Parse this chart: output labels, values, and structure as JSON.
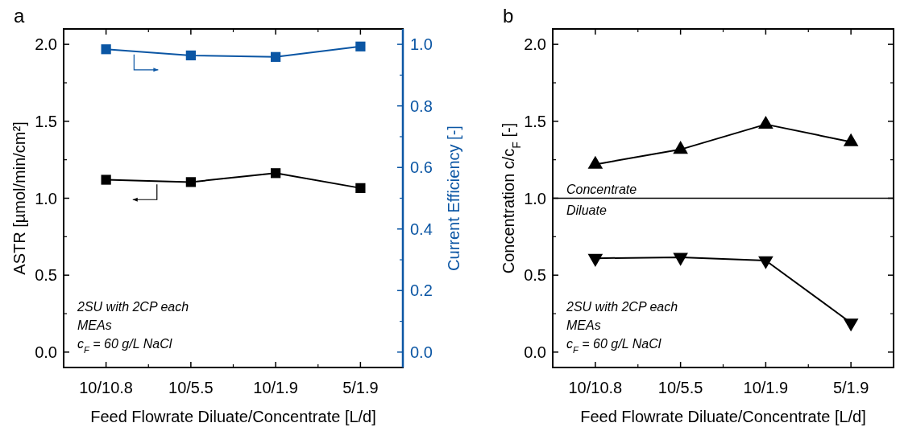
{
  "chart_data": [
    {
      "type": "line",
      "title": "a",
      "xlabel": "Feed Flowrate Diluate/Concentrate [L/d]",
      "ylabel": "ASTR [µmol/min/cm²]",
      "y2label": "Current Efficiency [-]",
      "categories": [
        "10/10.8",
        "10/5.5",
        "10/1.9",
        "5/1.9"
      ],
      "ylim": [
        -0.1,
        2.1
      ],
      "yticks": [
        {
          "value": 0,
          "label": "0.0"
        },
        {
          "value": 0.5,
          "label": "0.5"
        },
        {
          "value": 1,
          "label": "1.0"
        },
        {
          "value": 1.5,
          "label": "1.5"
        },
        {
          "value": 2,
          "label": "2.0"
        }
      ],
      "y2lim": [
        -0.05,
        1.05
      ],
      "y2ticks": [
        {
          "value": 0,
          "label": "0.0"
        },
        {
          "value": 0.2,
          "label": "0.2"
        },
        {
          "value": 0.4,
          "label": "0.4"
        },
        {
          "value": 0.6,
          "label": "0.6"
        },
        {
          "value": 0.8,
          "label": "0.8"
        },
        {
          "value": 1,
          "label": "1.0"
        }
      ],
      "marker": "square",
      "grid": false,
      "series": [
        {
          "color": "#000000",
          "values": [
            1.12,
            1.105,
            1.163,
            1.066
          ]
        },
        {
          "color": "#0b56a4",
          "axis": "y2",
          "values": [
            0.984,
            0.964,
            0.959,
            0.993
          ]
        }
      ],
      "annotations": [
        "2SU with 2CP each",
        "MEAs",
        "c$_{F}$ = 60 g/L NaCl"
      ]
    },
    {
      "type": "line",
      "title": "b",
      "xlabel": "Feed Flowrate Diluate/Concentrate [L/d]",
      "ylabel": "Concentration c/c$_{F}$ [-]",
      "categories": [
        "10/10.8",
        "10/5.5",
        "10/1.9",
        "5/1.9"
      ],
      "ylim": [
        -0.1,
        2.1
      ],
      "yticks": [
        {
          "value": 0,
          "label": "0.0"
        },
        {
          "value": 0.5,
          "label": "0.5"
        },
        {
          "value": 1,
          "label": "1.0"
        },
        {
          "value": 1.5,
          "label": "1.5"
        },
        {
          "value": 2,
          "label": "2.0"
        }
      ],
      "grid": false,
      "series": [
        {
          "color": "#000000",
          "marker": "triangle",
          "values": [
            1.22,
            1.317,
            1.48,
            1.366
          ]
        },
        {
          "color": "#000000",
          "marker": "triangle-down",
          "values": [
            0.61,
            0.616,
            0.595,
            0.19
          ]
        }
      ],
      "ref_lines": [
        {
          "axis": "y",
          "value": 1,
          "color": "#000000"
        }
      ],
      "annotations": [
        "Concentrate",
        "Diluate",
        "2SU with 2CP each",
        "MEAs",
        "c$_{F}$ = 60 g/L NaCl"
      ]
    }
  ]
}
